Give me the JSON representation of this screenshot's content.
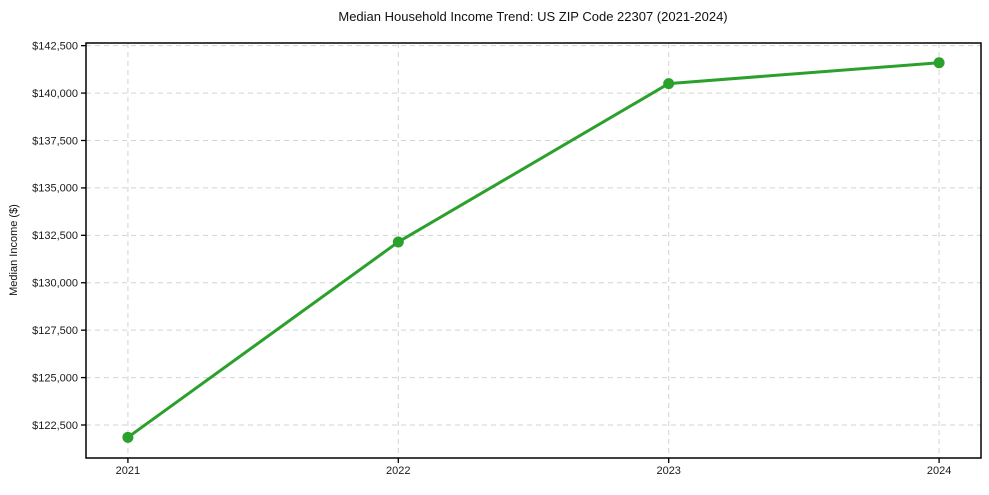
{
  "chart_data": {
    "type": "line",
    "title": "Median Household Income Trend: US ZIP Code 22307 (2021-2024)",
    "xlabel": "",
    "ylabel": "Median Income ($)",
    "x": [
      2021,
      2022,
      2023,
      2024
    ],
    "series": [
      {
        "name": "Median Household Income",
        "values": [
          121850,
          132150,
          140500,
          141600
        ]
      }
    ],
    "xtick_labels": [
      "2021",
      "2022",
      "2023",
      "2024"
    ],
    "ytick_values": [
      122500,
      125000,
      127500,
      130000,
      132500,
      135000,
      137500,
      140000,
      142500
    ],
    "ytick_labels": [
      "$122,500",
      "$125,000",
      "$127,500",
      "$130,000",
      "$132,500",
      "$135,000",
      "$137,500",
      "$140,000",
      "$142,500"
    ],
    "xlim": [
      2020.845,
      2024.155
    ],
    "ylim": [
      120760,
      142640
    ],
    "grid": true,
    "grid_style": "dashed",
    "legend_position": "none",
    "line_color": "#2ca02c",
    "marker": "circle",
    "marker_size": 5.5,
    "line_width": 3
  }
}
